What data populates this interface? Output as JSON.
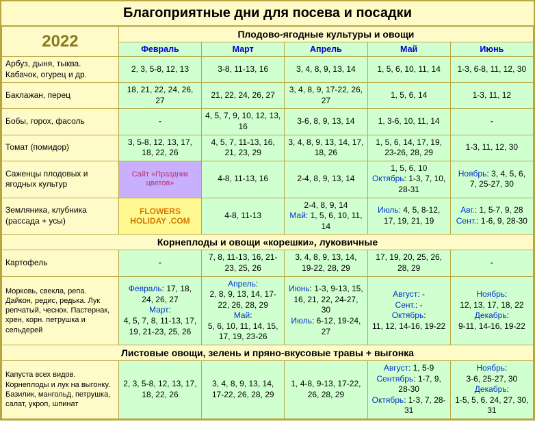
{
  "title": "Благоприятные дни для посева и посадки",
  "year": "2022",
  "section1": "Плодово-ягодные культуры и овощи",
  "section2": "Корнеплоды и овощи «корешки», луковичные",
  "section3": "Листовые овощи, зелень и пряно-вкусовые травы + выгонка",
  "months": {
    "m1": "Февраль",
    "m2": "Март",
    "m3": "Апрель",
    "m4": "Май",
    "m5": "Июнь"
  },
  "crops": {
    "r1": "Арбуз, дыня, тыква. Кабачок, огурец и др.",
    "r2": "Баклажан, перец",
    "r3": "Бобы, горох, фасоль",
    "r4": "Томат (помидор)",
    "r5": "Саженцы плодовых и ягодных культур",
    "r6": "Земляника, клубника (рассада + усы)",
    "r7": "Картофель",
    "r8": "Морковь, свекла, репа. Дайкон, редис, редька. Лук репчатый, чеснок. Пастернак, хрен, корн. петрушка и сельдерей",
    "r9": "Капуста всех видов. Корнеплоды и лук на выгонку. Базилик, мангольд, петрушка, салат, укроп, шпинат"
  },
  "promo1": "Сайт «Праздник цветов»",
  "promo2": "FLOWERS HOLIDAY .COM",
  "data": {
    "r1": [
      "2, 3, 5-8, 12, 13",
      "3-8, 11-13, 16",
      "3, 4, 8, 9, 13, 14",
      "1, 5, 6, 10, 11, 14",
      "1-3, 6-8, 11, 12, 30"
    ],
    "r2": [
      "18, 21, 22, 24, 26, 27",
      "21, 22, 24, 26, 27",
      "3, 4, 8, 9, 17-22, 26, 27",
      "1, 5, 6, 14",
      "1-3, 11, 12"
    ],
    "r3": [
      "-",
      "4, 5, 7, 9, 10, 12, 13, 16",
      "3-6, 8, 9, 13, 14",
      "1, 3-6, 10, 11, 14",
      "-"
    ],
    "r4": [
      "3, 5-8, 12, 13, 17, 18, 22, 26",
      "4, 5, 7, 11-13, 16, 21, 23, 29",
      "3, 4, 8, 9, 13, 14, 17, 18, 26",
      "1, 5, 6, 14, 17, 19, 23-26, 28, 29",
      "1-3, 11, 12, 30"
    ],
    "r5c3": "4-8, 11-13, 16",
    "r5c4": "2-4, 8, 9, 13, 14",
    "r5c5a": "1, 5, 6, 10",
    "r5c5b": "Октябрь",
    "r5c5c": ": 1-3, 7, 10, 28-31",
    "r5c6a": "Ноябрь",
    "r5c6b": ": 3, 4, 5, 6, 7, 25-27, 30",
    "r6c3": "4-8, 11-13",
    "r6c4a": "2-4, 8, 9, 14",
    "r6c4b": "Май",
    "r6c4c": ": 1, 5, 6, 10, 11, 14",
    "r6c5a": "Июль",
    "r6c5b": ": 4, 5, 8-12, 17, 19, 21, 19",
    "r6c6a": "Авг.",
    "r6c6b": ": 1, 5-7, 9, 28",
    "r6c6c": "Сент.",
    "r6c6d": ": 1-6, 9, 28-30",
    "r7": [
      "-",
      "7, 8, 11-13, 16, 21-23, 25, 26",
      "3, 4, 8, 9, 13, 14, 19-22, 28, 29",
      "17, 19, 20, 25, 26, 28, 29",
      "-"
    ],
    "r8c1a": "Февраль",
    "r8c1b": ": 17, 18, 24, 26, 27",
    "r8c1c": "Март",
    "r8c1d": ":",
    "r8c1e": "4, 5, 7, 8, 11-13, 17, 19, 21-23, 25, 26",
    "r8c2a": "Апрель",
    "r8c2b": ":",
    "r8c2c": "2, 8, 9, 13, 14, 17-22, 26, 28, 29",
    "r8c2d": "Май",
    "r8c2e": ":",
    "r8c2f": "5, 6, 10, 11, 14, 15, 17, 19, 23-26",
    "r8c3a": "Июнь",
    "r8c3b": ": 1-3, 9-13, 15, 16, 21, 22, 24-27, 30",
    "r8c3c": "Июль",
    "r8c3d": ": 6-12, 19-24, 27",
    "r8c4a": "Август",
    "r8c4b": ": -",
    "r8c4c": "Сент.",
    "r8c4d": ": -",
    "r8c4e": "Октябрь",
    "r8c4f": ":",
    "r8c4g": "11, 12, 14-16, 19-22",
    "r8c5a": "Ноябрь",
    "r8c5b": ":",
    "r8c5c": "12, 13, 17, 18, 22",
    "r8c5d": "Декабрь",
    "r8c5e": ":",
    "r8c5f": "9-11, 14-16, 19-22",
    "r9c1": "2, 3, 5-8, 12, 13, 17, 18, 22, 26",
    "r9c2": "3, 4, 8, 9, 13, 14, 17-22, 26, 28, 29",
    "r9c3": "1, 4-8, 9-13, 17-22, 26, 28, 29",
    "r9c4a": "Август",
    "r9c4b": ": 1, 5-9",
    "r9c4c": "Сентябрь",
    "r9c4d": ": 1-7, 9, 28-30",
    "r9c4e": "Октябрь",
    "r9c4f": ": 1-3, 7, 28-31",
    "r9c5a": "Ноябрь",
    "r9c5b": ":",
    "r9c5c": "3-6, 25-27, 30",
    "r9c5d": "Декабрь",
    "r9c5e": ":",
    "r9c5f": "1-5, 5, 6, 24, 27, 30, 31"
  }
}
